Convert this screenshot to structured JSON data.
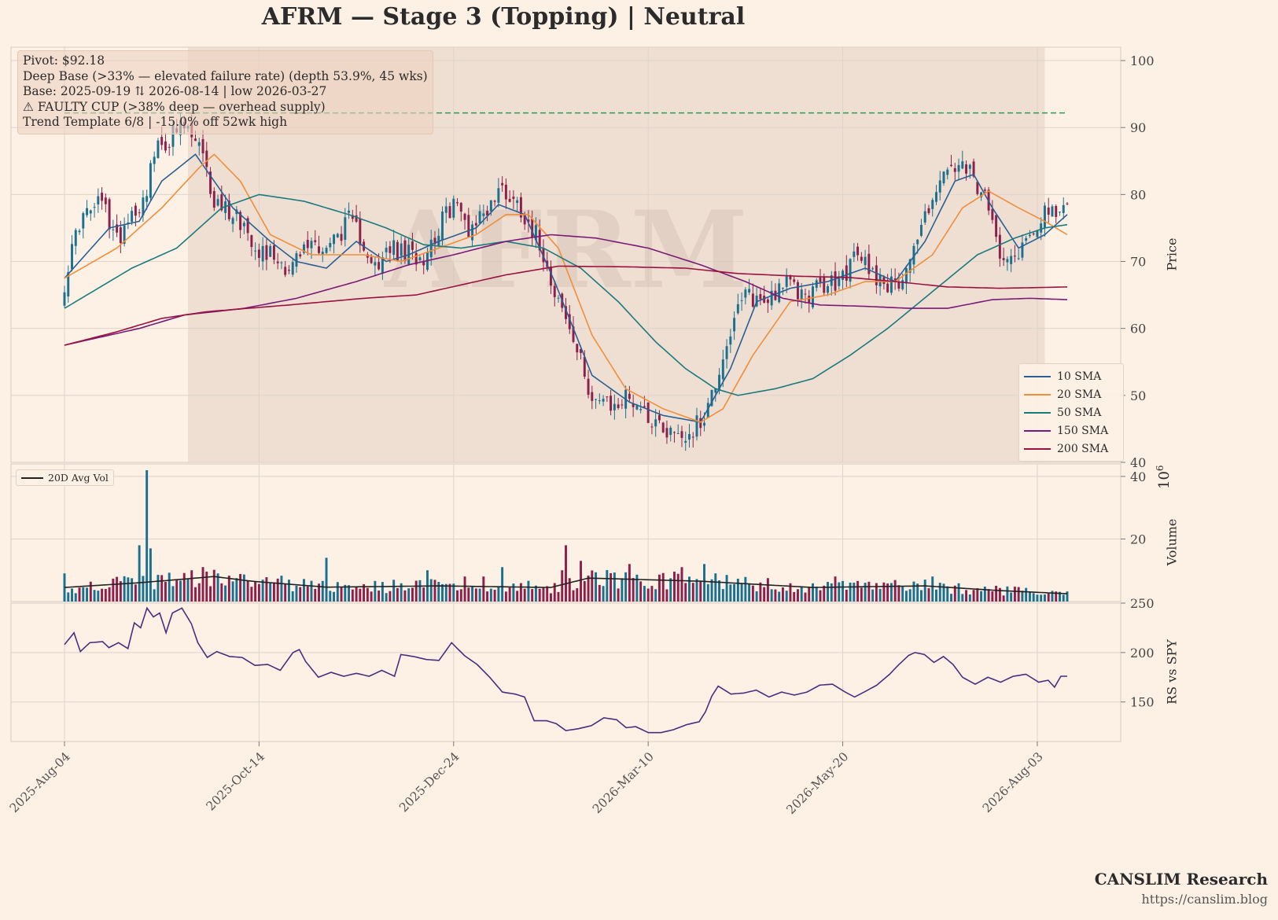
{
  "title": "AFRM  —  Stage 3 (Topping)  |  Neutral",
  "info_box": [
    "Pivot: $92.18",
    "Deep Base (>33% — elevated failure rate)  (depth 53.9%, 45 wks)",
    "Base: 2025-09-19 ⇅ 2026-08-14  |  low 2026-03-27",
    "⚠ FAULTY CUP (>38% deep — overhead supply)",
    "Trend Template 6/8  |  -15.0% off 52wk high"
  ],
  "watermark": "AFRM",
  "footer": {
    "brand": "CANSLIM Research",
    "url": "https://canslim.blog"
  },
  "colors": {
    "background": "#fdf1e6",
    "up_candle": "#1a7090",
    "down_candle": "#8e1f4a",
    "pivot_line": "#2e9a5a",
    "base_shade": "#e9d8cb",
    "rs_line": "#4a2e7e"
  },
  "chart_data": [
    {
      "type": "candlestick",
      "panel": "price",
      "ylabel": "Price",
      "ylim": [
        40,
        102
      ],
      "yticks": [
        40,
        50,
        60,
        70,
        80,
        90,
        100
      ],
      "x_tick_labels": [
        "2025-Aug-04",
        "2025-Oct-14",
        "2025-Dec-24",
        "2026-Mar-10",
        "2026-May-20",
        "2026-Aug-03"
      ],
      "pivot": 92.18,
      "base_shading": {
        "start": "2025-09-19",
        "end": "2026-08-14"
      },
      "close_anchors": [
        [
          0,
          67
        ],
        [
          4,
          76
        ],
        [
          10,
          79
        ],
        [
          14,
          73
        ],
        [
          17,
          77
        ],
        [
          21,
          79
        ],
        [
          24,
          86
        ],
        [
          29,
          89
        ],
        [
          32,
          90
        ],
        [
          36,
          87
        ],
        [
          40,
          79
        ],
        [
          46,
          77
        ],
        [
          52,
          72
        ],
        [
          56,
          71
        ],
        [
          60,
          69
        ],
        [
          66,
          73
        ],
        [
          70,
          72
        ],
        [
          76,
          76
        ],
        [
          80,
          73
        ],
        [
          84,
          68
        ],
        [
          86,
          72
        ],
        [
          91,
          71
        ],
        [
          96,
          71
        ],
        [
          100,
          75
        ],
        [
          104,
          79
        ],
        [
          108,
          75
        ],
        [
          113,
          78
        ],
        [
          117,
          81
        ],
        [
          122,
          78
        ],
        [
          127,
          73
        ],
        [
          131,
          66
        ],
        [
          136,
          58
        ],
        [
          141,
          50
        ],
        [
          146,
          48
        ],
        [
          151,
          50
        ],
        [
          156,
          47
        ],
        [
          161,
          45
        ],
        [
          166,
          44
        ],
        [
          170,
          46
        ],
        [
          173,
          50
        ],
        [
          177,
          58
        ],
        [
          182,
          65
        ],
        [
          187,
          64
        ],
        [
          192,
          67
        ],
        [
          197,
          65
        ],
        [
          202,
          66
        ],
        [
          207,
          67
        ],
        [
          212,
          71
        ],
        [
          217,
          68
        ],
        [
          222,
          66
        ],
        [
          227,
          72
        ],
        [
          232,
          80
        ],
        [
          237,
          84
        ],
        [
          242,
          83
        ],
        [
          246,
          79
        ],
        [
          250,
          72
        ],
        [
          254,
          71
        ],
        [
          258,
          74
        ],
        [
          262,
          78
        ],
        [
          265,
          76
        ],
        [
          268,
          79
        ]
      ],
      "legend": [
        {
          "name": "10 SMA",
          "color": "#2a5f93"
        },
        {
          "name": "20 SMA",
          "color": "#f28e3a"
        },
        {
          "name": "50 SMA",
          "color": "#1b7a7e"
        },
        {
          "name": "150 SMA",
          "color": "#7a1a78"
        },
        {
          "name": "200 SMA",
          "color": "#9a1240"
        }
      ],
      "sma_anchors": {
        "10 SMA": [
          [
            0,
            67.5
          ],
          [
            12,
            75
          ],
          [
            20,
            76
          ],
          [
            26,
            82
          ],
          [
            35,
            86
          ],
          [
            45,
            78
          ],
          [
            55,
            73
          ],
          [
            62,
            70
          ],
          [
            70,
            69
          ],
          [
            78,
            73
          ],
          [
            86,
            70
          ],
          [
            92,
            71
          ],
          [
            100,
            73
          ],
          [
            110,
            75
          ],
          [
            116,
            78.5
          ],
          [
            123,
            77
          ],
          [
            131,
            67
          ],
          [
            141,
            53
          ],
          [
            151,
            49
          ],
          [
            160,
            47
          ],
          [
            170,
            46
          ],
          [
            178,
            54
          ],
          [
            185,
            64
          ],
          [
            194,
            66
          ],
          [
            204,
            67
          ],
          [
            214,
            69
          ],
          [
            222,
            67
          ],
          [
            230,
            73
          ],
          [
            238,
            82
          ],
          [
            243,
            83
          ],
          [
            248,
            78
          ],
          [
            255,
            72
          ],
          [
            262,
            74
          ],
          [
            268,
            77
          ]
        ],
        "20 SMA": [
          [
            0,
            67.5
          ],
          [
            14,
            72
          ],
          [
            26,
            78
          ],
          [
            36,
            84
          ],
          [
            40,
            86
          ],
          [
            47,
            82
          ],
          [
            55,
            74
          ],
          [
            66,
            71
          ],
          [
            80,
            71
          ],
          [
            90,
            70
          ],
          [
            100,
            72
          ],
          [
            110,
            74
          ],
          [
            118,
            77
          ],
          [
            124,
            77
          ],
          [
            132,
            72
          ],
          [
            141,
            59
          ],
          [
            150,
            51
          ],
          [
            160,
            48
          ],
          [
            170,
            46
          ],
          [
            176,
            48
          ],
          [
            184,
            56
          ],
          [
            194,
            64
          ],
          [
            204,
            65
          ],
          [
            214,
            67
          ],
          [
            222,
            67
          ],
          [
            232,
            71
          ],
          [
            240,
            78
          ],
          [
            247,
            80.5
          ],
          [
            255,
            78
          ],
          [
            262,
            76
          ],
          [
            268,
            74
          ]
        ],
        "50 SMA": [
          [
            0,
            63
          ],
          [
            18,
            69
          ],
          [
            30,
            72
          ],
          [
            42,
            78
          ],
          [
            52,
            80
          ],
          [
            64,
            79
          ],
          [
            76,
            77
          ],
          [
            86,
            75
          ],
          [
            96,
            72.5
          ],
          [
            106,
            72
          ],
          [
            118,
            73
          ],
          [
            128,
            72
          ],
          [
            138,
            69
          ],
          [
            148,
            64
          ],
          [
            158,
            58
          ],
          [
            166,
            54
          ],
          [
            174,
            51
          ],
          [
            180,
            50
          ],
          [
            190,
            51
          ],
          [
            200,
            52.5
          ],
          [
            210,
            56
          ],
          [
            220,
            60
          ],
          [
            232,
            65.5
          ],
          [
            244,
            71
          ],
          [
            254,
            73.5
          ],
          [
            262,
            75
          ],
          [
            268,
            75.5
          ]
        ],
        "150 SMA": [
          [
            0,
            57.5
          ],
          [
            20,
            60
          ],
          [
            32,
            62
          ],
          [
            48,
            63
          ],
          [
            62,
            64.5
          ],
          [
            78,
            67
          ],
          [
            92,
            69.5
          ],
          [
            104,
            71
          ],
          [
            118,
            73
          ],
          [
            130,
            74
          ],
          [
            142,
            73.5
          ],
          [
            156,
            72
          ],
          [
            170,
            69.5
          ],
          [
            182,
            67
          ],
          [
            192,
            64.5
          ],
          [
            202,
            63.5
          ],
          [
            214,
            63.3
          ],
          [
            226,
            63
          ],
          [
            236,
            63
          ],
          [
            248,
            64.3
          ],
          [
            258,
            64.5
          ],
          [
            268,
            64.3
          ]
        ],
        "200 SMA": [
          [
            0,
            57.5
          ],
          [
            14,
            59.5
          ],
          [
            26,
            61.5
          ],
          [
            38,
            62.5
          ],
          [
            60,
            63.5
          ],
          [
            80,
            64.5
          ],
          [
            94,
            65
          ],
          [
            106,
            66.5
          ],
          [
            118,
            68
          ],
          [
            132,
            69.3
          ],
          [
            150,
            69.2
          ],
          [
            166,
            69
          ],
          [
            180,
            68.2
          ],
          [
            196,
            67.8
          ],
          [
            210,
            67.6
          ],
          [
            222,
            67
          ],
          [
            236,
            66.2
          ],
          [
            250,
            66
          ],
          [
            260,
            66.1
          ],
          [
            268,
            66.2
          ]
        ]
      }
    },
    {
      "type": "bar",
      "panel": "volume",
      "ylabel": "Volume",
      "unit_exponent": "10^6",
      "ylim": [
        0,
        44
      ],
      "yticks": [
        20,
        40
      ],
      "legend": [
        {
          "name": "20D Avg Vol",
          "color": "#222222"
        }
      ],
      "spikes": [
        [
          0,
          9
        ],
        [
          20,
          18
        ],
        [
          22,
          42
        ],
        [
          23,
          17
        ],
        [
          41,
          9
        ],
        [
          70,
          14
        ],
        [
          97,
          10
        ],
        [
          107,
          8
        ],
        [
          112,
          8
        ],
        [
          117,
          11
        ],
        [
          133,
          10
        ],
        [
          134,
          18
        ],
        [
          138,
          13
        ],
        [
          151,
          12
        ],
        [
          165,
          11
        ],
        [
          171,
          12
        ],
        [
          174,
          9
        ],
        [
          206,
          8
        ],
        [
          232,
          8
        ]
      ],
      "avg_anchors": [
        [
          0,
          4.5
        ],
        [
          20,
          6
        ],
        [
          40,
          8
        ],
        [
          50,
          6.5
        ],
        [
          70,
          4.6
        ],
        [
          100,
          5
        ],
        [
          130,
          4.5
        ],
        [
          140,
          7.5
        ],
        [
          170,
          6.5
        ],
        [
          200,
          4.5
        ],
        [
          230,
          5
        ],
        [
          250,
          3.5
        ],
        [
          268,
          2.5
        ]
      ]
    },
    {
      "type": "line",
      "panel": "relative_strength",
      "ylabel": "RS vs SPY",
      "ylim": [
        110,
        250
      ],
      "yticks": [
        150,
        200,
        250
      ],
      "rs_anchors": [
        [
          0,
          208
        ],
        [
          3,
          220
        ],
        [
          5,
          201
        ],
        [
          8,
          210
        ],
        [
          12,
          211
        ],
        [
          14,
          205
        ],
        [
          17,
          210
        ],
        [
          20,
          204
        ],
        [
          22,
          230
        ],
        [
          24,
          225
        ],
        [
          26,
          245
        ],
        [
          28,
          236
        ],
        [
          30,
          240
        ],
        [
          32,
          220
        ],
        [
          34,
          240
        ],
        [
          37,
          245
        ],
        [
          40,
          229
        ],
        [
          42,
          210
        ],
        [
          45,
          195
        ],
        [
          48,
          201
        ],
        [
          52,
          196
        ],
        [
          56,
          195
        ],
        [
          60,
          187
        ],
        [
          64,
          188
        ],
        [
          68,
          182
        ],
        [
          72,
          200
        ],
        [
          74,
          203
        ],
        [
          76,
          191
        ],
        [
          80,
          175
        ],
        [
          84,
          180
        ],
        [
          88,
          176
        ],
        [
          92,
          179
        ],
        [
          96,
          176
        ],
        [
          100,
          182
        ],
        [
          104,
          176
        ],
        [
          106,
          198
        ],
        [
          110,
          196
        ],
        [
          114,
          193
        ],
        [
          118,
          192
        ],
        [
          122,
          210
        ],
        [
          126,
          197
        ],
        [
          130,
          188
        ],
        [
          134,
          175
        ],
        [
          138,
          160
        ],
        [
          142,
          158
        ],
        [
          145,
          155
        ],
        [
          148,
          131
        ],
        [
          152,
          131
        ],
        [
          155,
          128
        ],
        [
          158,
          121
        ],
        [
          162,
          123
        ],
        [
          166,
          126
        ],
        [
          170,
          134
        ],
        [
          174,
          132
        ],
        [
          177,
          124
        ],
        [
          180,
          125
        ],
        [
          184,
          119
        ],
        [
          188,
          119
        ],
        [
          192,
          122
        ],
        [
          196,
          127
        ],
        [
          200,
          130
        ],
        [
          202,
          140
        ],
        [
          204,
          156
        ],
        [
          206,
          166
        ],
        [
          210,
          158
        ],
        [
          214,
          159
        ],
        [
          218,
          162
        ],
        [
          222,
          155
        ],
        [
          226,
          160
        ],
        [
          230,
          157
        ],
        [
          234,
          160
        ],
        [
          238,
          167
        ],
        [
          242,
          168
        ],
        [
          246,
          160
        ],
        [
          249,
          155
        ],
        [
          252,
          160
        ],
        [
          256,
          167
        ],
        [
          260,
          178
        ],
        [
          263,
          188
        ],
        [
          266,
          197
        ],
        [
          268,
          200
        ],
        [
          271,
          198
        ],
        [
          274,
          190
        ],
        [
          277,
          196
        ],
        [
          280,
          188
        ],
        [
          283,
          175
        ],
        [
          287,
          168
        ],
        [
          291,
          175
        ],
        [
          295,
          170
        ],
        [
          299,
          176
        ],
        [
          303,
          178
        ],
        [
          307,
          170
        ],
        [
          310,
          172
        ],
        [
          312,
          165
        ],
        [
          314,
          176
        ],
        [
          316,
          176
        ]
      ]
    }
  ]
}
